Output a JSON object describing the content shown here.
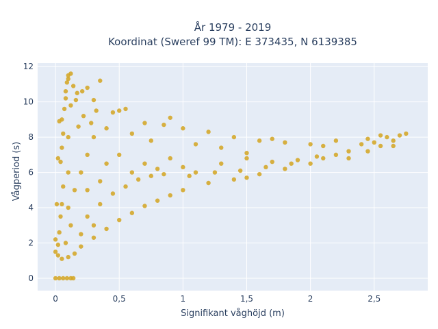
{
  "chart_data": {
    "type": "scatter",
    "title_line1": "År 1979 - 2019",
    "title_line2": "Koordinat (Sweref 99 TM): E 373435, N 6139385",
    "xlabel": "Signifikant våghöjd (m)",
    "ylabel": "Vågperiod (s)",
    "xlim": [
      -0.14,
      2.92
    ],
    "ylim": [
      -0.7,
      12.2
    ],
    "x_ticks": [
      0,
      0.5,
      1,
      1.5,
      2,
      2.5
    ],
    "x_tick_labels": [
      "0",
      "0,5",
      "1",
      "1,5",
      "2",
      "2,5"
    ],
    "y_ticks": [
      0,
      2,
      4,
      6,
      8,
      10,
      12
    ],
    "y_tick_labels": [
      "0",
      "2",
      "4",
      "6",
      "8",
      "10",
      "12"
    ],
    "grid": true,
    "colors": {
      "background": "#e5ecf6",
      "grid": "#ffffff",
      "marker": "#d4a520",
      "text": "#2a3f5f"
    },
    "series": [
      {
        "values": [
          [
            0.0,
            0.0
          ],
          [
            0.03,
            0.0
          ],
          [
            0.06,
            0.0
          ],
          [
            0.09,
            0.0
          ],
          [
            0.12,
            0.0
          ],
          [
            0.14,
            0.0
          ],
          [
            0.0,
            1.5
          ],
          [
            0.02,
            1.9
          ],
          [
            0.03,
            2.6
          ],
          [
            0.04,
            3.5
          ],
          [
            0.05,
            4.2
          ],
          [
            0.06,
            5.2
          ],
          [
            0.04,
            6.6
          ],
          [
            0.05,
            7.4
          ],
          [
            0.06,
            8.2
          ],
          [
            0.05,
            9.0
          ],
          [
            0.07,
            9.6
          ],
          [
            0.08,
            10.2
          ],
          [
            0.08,
            10.6
          ],
          [
            0.09,
            11.1
          ],
          [
            0.1,
            11.5
          ],
          [
            0.1,
            11.3
          ],
          [
            0.12,
            11.6
          ],
          [
            0.14,
            10.9
          ],
          [
            0.17,
            10.5
          ],
          [
            0.21,
            10.6
          ],
          [
            0.25,
            10.8
          ],
          [
            0.35,
            11.2
          ],
          [
            0.3,
            10.1
          ],
          [
            0.45,
            9.4
          ],
          [
            0.5,
            9.5
          ],
          [
            0.55,
            9.6
          ],
          [
            0.7,
            8.8
          ],
          [
            0.85,
            8.7
          ],
          [
            0.9,
            9.1
          ],
          [
            1.0,
            8.5
          ],
          [
            1.2,
            8.3
          ],
          [
            1.4,
            8.0
          ],
          [
            1.6,
            7.8
          ],
          [
            1.7,
            7.9
          ],
          [
            1.8,
            7.7
          ],
          [
            2.0,
            7.6
          ],
          [
            2.1,
            7.5
          ],
          [
            2.2,
            7.8
          ],
          [
            2.3,
            7.2
          ],
          [
            2.4,
            7.6
          ],
          [
            2.45,
            7.9
          ],
          [
            2.5,
            7.7
          ],
          [
            2.55,
            8.1
          ],
          [
            2.6,
            8.0
          ],
          [
            2.65,
            7.8
          ],
          [
            2.7,
            8.1
          ],
          [
            2.75,
            8.2
          ],
          [
            2.65,
            7.5
          ],
          [
            2.55,
            7.5
          ],
          [
            2.45,
            7.2
          ],
          [
            2.3,
            6.8
          ],
          [
            2.1,
            6.8
          ],
          [
            2.0,
            6.5
          ],
          [
            1.8,
            6.2
          ],
          [
            1.6,
            5.9
          ],
          [
            1.5,
            5.7
          ],
          [
            1.4,
            5.6
          ],
          [
            1.2,
            5.4
          ],
          [
            1.0,
            5.0
          ],
          [
            0.9,
            4.7
          ],
          [
            0.8,
            4.4
          ],
          [
            0.7,
            4.1
          ],
          [
            0.6,
            3.7
          ],
          [
            0.5,
            3.3
          ],
          [
            0.4,
            2.8
          ],
          [
            0.3,
            2.3
          ],
          [
            0.2,
            1.8
          ],
          [
            0.15,
            1.4
          ],
          [
            0.1,
            1.2
          ],
          [
            0.05,
            1.1
          ],
          [
            0.02,
            1.3
          ],
          [
            0.0,
            2.2
          ],
          [
            0.01,
            4.2
          ],
          [
            0.02,
            6.8
          ],
          [
            0.03,
            8.9
          ],
          [
            0.15,
            5.0
          ],
          [
            0.2,
            6.0
          ],
          [
            0.25,
            7.0
          ],
          [
            0.3,
            8.0
          ],
          [
            0.35,
            5.5
          ],
          [
            0.4,
            6.5
          ],
          [
            0.5,
            7.0
          ],
          [
            0.6,
            6.0
          ],
          [
            0.7,
            6.5
          ],
          [
            0.8,
            6.2
          ],
          [
            0.9,
            6.8
          ],
          [
            1.0,
            6.3
          ],
          [
            1.1,
            6.0
          ],
          [
            1.3,
            6.5
          ],
          [
            1.5,
            6.8
          ],
          [
            1.7,
            6.6
          ],
          [
            1.9,
            6.7
          ],
          [
            2.2,
            7.0
          ],
          [
            0.12,
            3.0
          ],
          [
            0.25,
            3.5
          ],
          [
            0.35,
            4.2
          ],
          [
            0.45,
            4.8
          ],
          [
            0.55,
            5.2
          ],
          [
            0.65,
            5.6
          ],
          [
            0.75,
            5.8
          ],
          [
            0.85,
            5.9
          ],
          [
            1.05,
            5.8
          ],
          [
            1.25,
            6.0
          ],
          [
            1.45,
            6.1
          ],
          [
            1.65,
            6.3
          ],
          [
            1.85,
            6.5
          ],
          [
            2.05,
            6.9
          ],
          [
            0.18,
            8.6
          ],
          [
            0.22,
            9.2
          ],
          [
            0.28,
            8.8
          ],
          [
            0.12,
            9.8
          ],
          [
            0.16,
            10.1
          ],
          [
            0.32,
            9.5
          ],
          [
            0.4,
            8.5
          ],
          [
            0.6,
            8.2
          ],
          [
            0.75,
            7.8
          ],
          [
            1.1,
            7.6
          ],
          [
            1.3,
            7.4
          ],
          [
            1.5,
            7.1
          ],
          [
            0.1,
            4.0
          ],
          [
            0.1,
            6.0
          ],
          [
            0.1,
            8.0
          ],
          [
            0.2,
            2.5
          ],
          [
            0.3,
            3.0
          ],
          [
            0.08,
            2.0
          ],
          [
            0.25,
            5.0
          ]
        ]
      }
    ]
  }
}
